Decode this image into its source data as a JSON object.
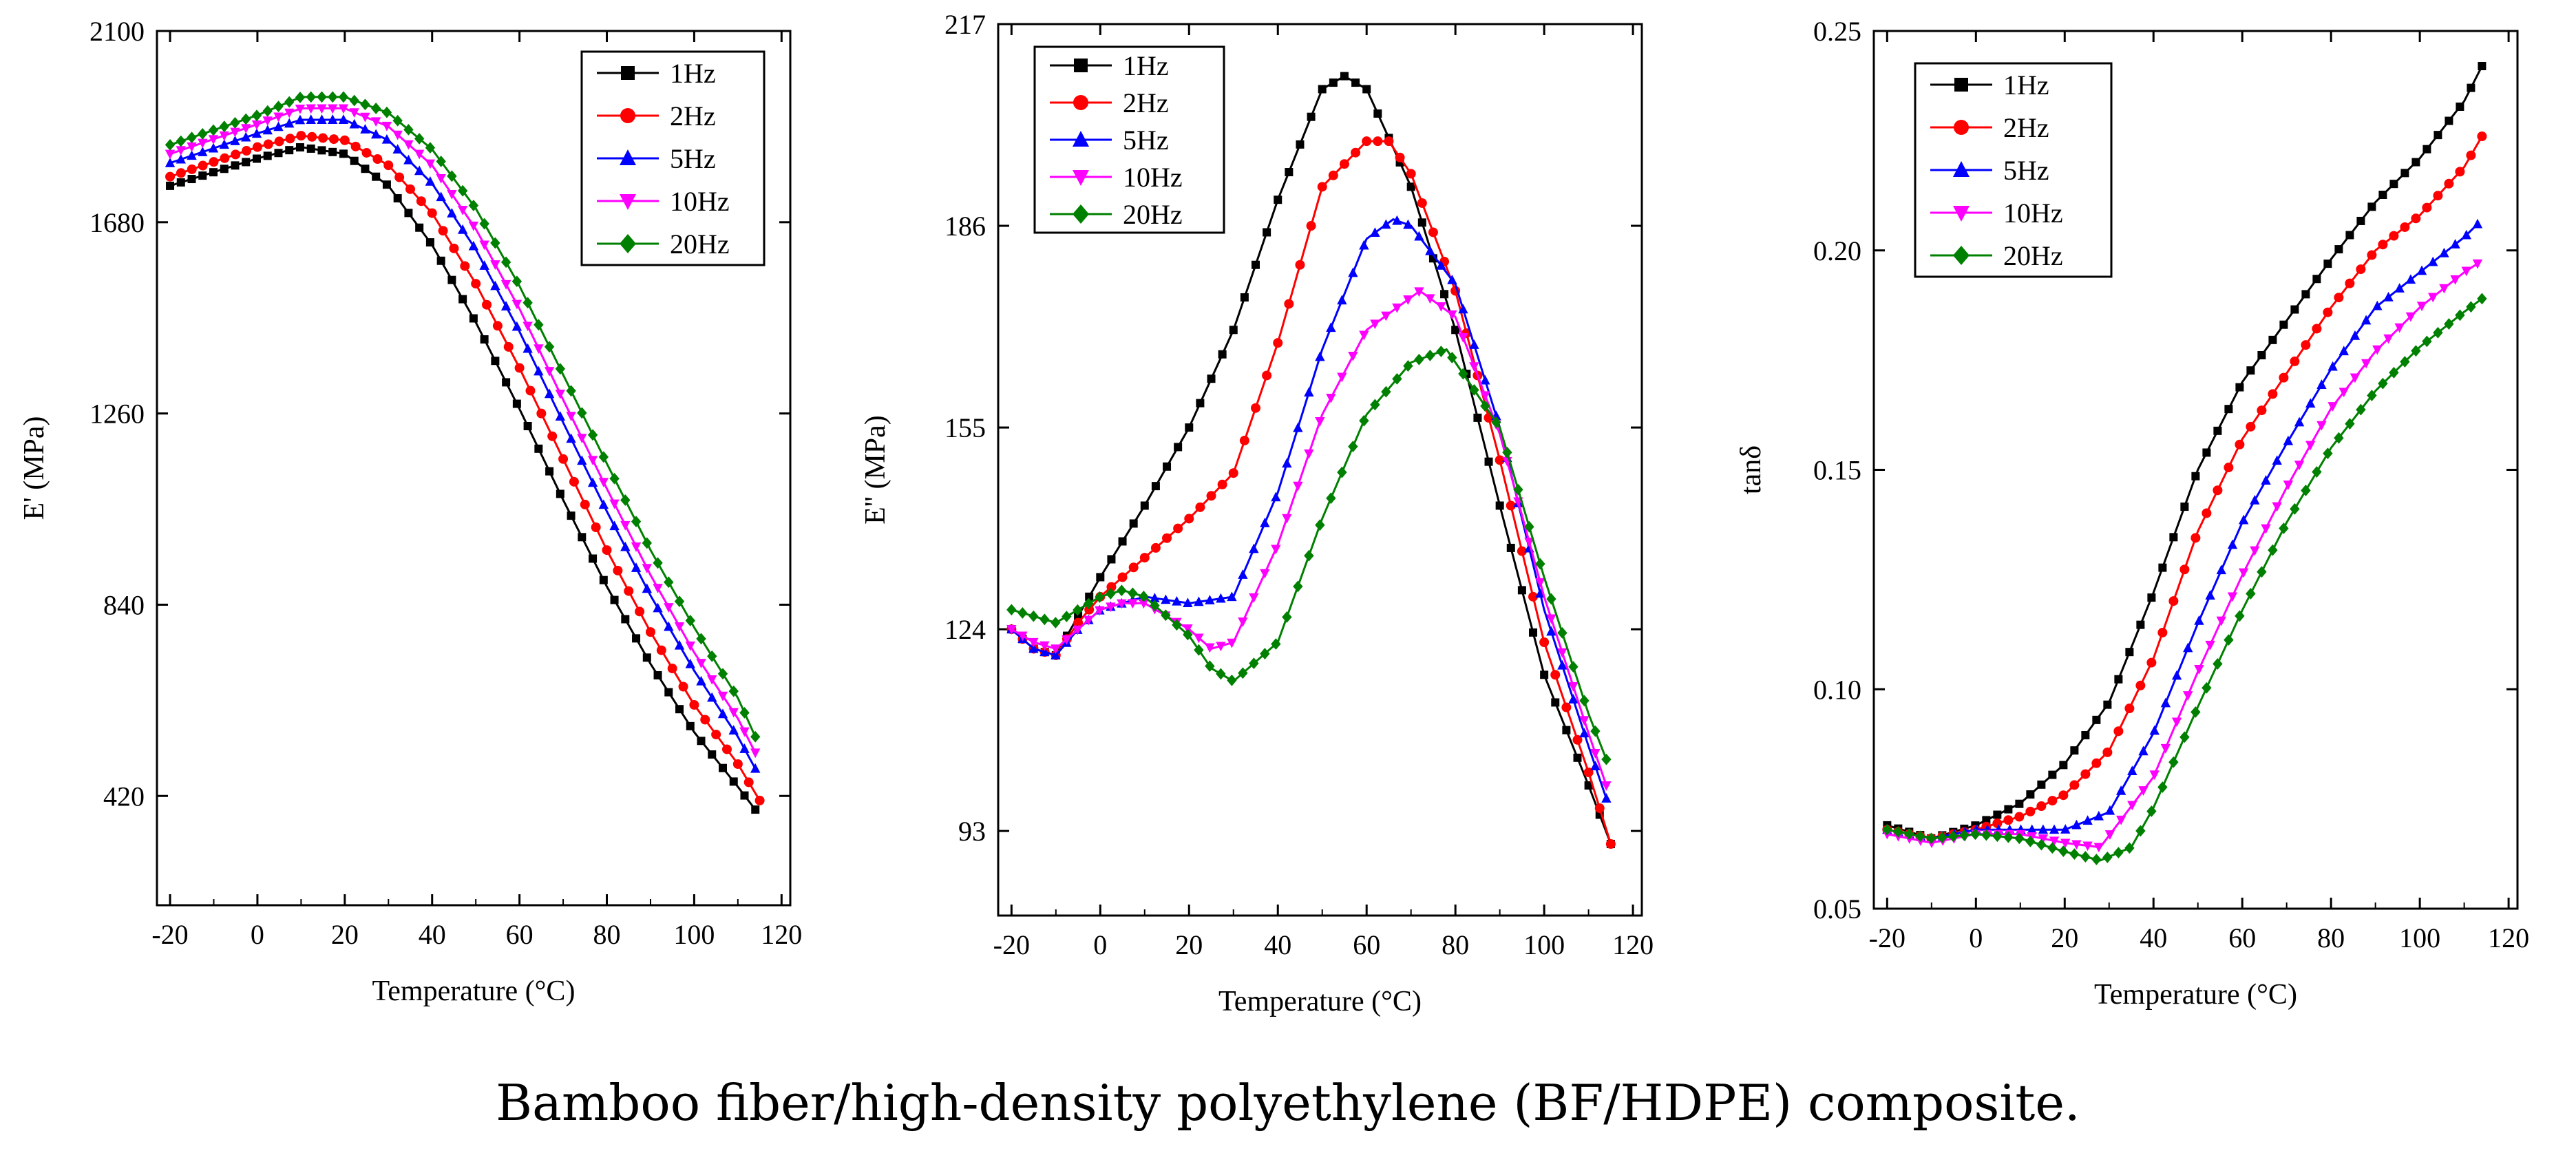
{
  "caption": "Bamboo fiber/high-density polyethylene (BF/HDPE) composite.",
  "colors": {
    "1Hz": "#000000",
    "2Hz": "#ff0000",
    "5Hz": "#0000ff",
    "10Hz": "#ff00ff",
    "20Hz": "#008000"
  },
  "chart_data": [
    {
      "type": "line",
      "title": "",
      "xlabel": "Temperature (°C)",
      "ylabel": "E' (MPa)",
      "xlim": [
        -23,
        122
      ],
      "ylim": [
        180,
        2100
      ],
      "xticks": [
        -20,
        0,
        20,
        40,
        60,
        80,
        100,
        120
      ],
      "xtick_labels": [
        "-20",
        "0",
        "20",
        "40",
        "60",
        "80",
        "100",
        "120"
      ],
      "yticks": [
        420,
        840,
        1260,
        1680,
        2100
      ],
      "ytick_labels": [
        "420",
        "840",
        "1260",
        "1680",
        "2100"
      ],
      "legend_position": "top-right",
      "series": [
        {
          "name": "1Hz",
          "marker": "square",
          "x": [
            -20,
            0,
            10,
            20,
            30,
            40,
            50,
            60,
            70,
            80,
            90,
            100,
            110,
            114
          ],
          "values": [
            1760,
            1820,
            1845,
            1830,
            1760,
            1630,
            1460,
            1270,
            1070,
            880,
            710,
            560,
            440,
            390
          ]
        },
        {
          "name": "2Hz",
          "marker": "circle",
          "x": [
            -20,
            0,
            10,
            20,
            30,
            40,
            50,
            60,
            70,
            80,
            90,
            100,
            110,
            115
          ],
          "values": [
            1780,
            1845,
            1870,
            1860,
            1805,
            1700,
            1545,
            1360,
            1160,
            960,
            780,
            620,
            490,
            410
          ]
        },
        {
          "name": "5Hz",
          "marker": "triangle-up",
          "x": [
            -20,
            0,
            10,
            20,
            30,
            40,
            50,
            60,
            70,
            80,
            90,
            100,
            110,
            114
          ],
          "values": [
            1810,
            1875,
            1905,
            1905,
            1860,
            1765,
            1620,
            1440,
            1240,
            1045,
            860,
            695,
            550,
            480
          ]
        },
        {
          "name": "10Hz",
          "marker": "triangle-down",
          "x": [
            -20,
            0,
            10,
            20,
            30,
            40,
            50,
            60,
            70,
            80,
            90,
            100,
            110,
            114
          ],
          "values": [
            1830,
            1895,
            1930,
            1930,
            1890,
            1805,
            1665,
            1490,
            1290,
            1095,
            905,
            735,
            590,
            515
          ]
        },
        {
          "name": "20Hz",
          "marker": "diamond",
          "x": [
            -20,
            0,
            10,
            20,
            30,
            40,
            50,
            60,
            70,
            80,
            90,
            100,
            110,
            114
          ],
          "values": [
            1850,
            1915,
            1955,
            1955,
            1920,
            1840,
            1710,
            1540,
            1345,
            1150,
            960,
            790,
            635,
            550
          ]
        }
      ]
    },
    {
      "type": "line",
      "title": "",
      "xlabel": "Temperature (°C)",
      "ylabel": "E'' (MPa)",
      "xlim": [
        -23,
        122
      ],
      "ylim": [
        80,
        217
      ],
      "xticks": [
        -20,
        0,
        20,
        40,
        60,
        80,
        100,
        120
      ],
      "xtick_labels": [
        "-20",
        "0",
        "20",
        "40",
        "60",
        "80",
        "100",
        "120"
      ],
      "yticks": [
        93,
        124,
        155,
        186,
        217
      ],
      "ytick_labels": [
        "93",
        "124",
        "155",
        "186",
        "217"
      ],
      "legend_position": "top-left",
      "series": [
        {
          "name": "1Hz",
          "marker": "square",
          "x": [
            -20,
            -15,
            -10,
            -5,
            0,
            10,
            20,
            30,
            40,
            50,
            55,
            60,
            70,
            80,
            90,
            100,
            110,
            115
          ],
          "values": [
            124,
            121,
            120,
            126,
            132,
            143,
            155,
            170,
            190,
            207,
            209,
            207,
            192,
            170,
            143,
            117,
            100,
            91
          ]
        },
        {
          "name": "2Hz",
          "marker": "circle",
          "x": [
            -20,
            -15,
            -10,
            -5,
            0,
            10,
            20,
            30,
            40,
            50,
            60,
            65,
            70,
            80,
            90,
            100,
            110,
            115
          ],
          "values": [
            124,
            121,
            120,
            125,
            129,
            135,
            141,
            148,
            168,
            192,
            199,
            199,
            194,
            176,
            150,
            122,
            102,
            91
          ]
        },
        {
          "name": "5Hz",
          "marker": "triangle-up",
          "x": [
            -20,
            -15,
            -10,
            -5,
            0,
            10,
            20,
            30,
            40,
            50,
            60,
            66,
            70,
            80,
            90,
            100,
            110,
            114
          ],
          "values": [
            124,
            121,
            120,
            124,
            127,
            129,
            128,
            129,
            145,
            167,
            184,
            187,
            186,
            177,
            155,
            127,
            106,
            98
          ]
        },
        {
          "name": "10Hz",
          "marker": "triangle-down",
          "x": [
            -20,
            -15,
            -10,
            -5,
            0,
            5,
            10,
            20,
            25,
            30,
            40,
            50,
            60,
            72,
            80,
            90,
            100,
            110,
            114
          ],
          "values": [
            124,
            122,
            121,
            124,
            127,
            128,
            128,
            124,
            121,
            122,
            137,
            157,
            170,
            176,
            172,
            154,
            129,
            108,
            100
          ]
        },
        {
          "name": "20Hz",
          "marker": "diamond",
          "x": [
            -20,
            -15,
            -10,
            -5,
            0,
            5,
            10,
            20,
            25,
            30,
            40,
            50,
            60,
            70,
            78,
            90,
            100,
            110,
            114
          ],
          "values": [
            127,
            126,
            125,
            127,
            129,
            130,
            129,
            123,
            118,
            116,
            122,
            141,
            157,
            165,
            167,
            155,
            132,
            111,
            104
          ]
        }
      ]
    },
    {
      "type": "line",
      "title": "",
      "xlabel": "Temperature (°C)",
      "ylabel": "tanδ",
      "xlim": [
        -23,
        122
      ],
      "ylim": [
        0.05,
        0.25
      ],
      "xticks": [
        -20,
        0,
        20,
        40,
        60,
        80,
        100,
        120
      ],
      "xtick_labels": [
        "-20",
        "0",
        "20",
        "40",
        "60",
        "80",
        "100",
        "120"
      ],
      "yticks": [
        0.05,
        0.1,
        0.15,
        0.2,
        0.25
      ],
      "ytick_labels": [
        "0.05",
        "0.10",
        "0.15",
        "0.20",
        "0.25"
      ],
      "legend_position": "top-left",
      "series": [
        {
          "name": "1Hz",
          "marker": "square",
          "x": [
            -20,
            -10,
            0,
            10,
            20,
            30,
            40,
            50,
            60,
            70,
            80,
            90,
            100,
            110,
            114
          ],
          "values": [
            0.069,
            0.066,
            0.069,
            0.074,
            0.083,
            0.097,
            0.122,
            0.15,
            0.17,
            0.184,
            0.198,
            0.211,
            0.221,
            0.234,
            0.242
          ]
        },
        {
          "name": "2Hz",
          "marker": "circle",
          "x": [
            -20,
            -10,
            0,
            10,
            20,
            30,
            40,
            50,
            60,
            70,
            80,
            90,
            100,
            110,
            114
          ],
          "values": [
            0.068,
            0.066,
            0.068,
            0.071,
            0.076,
            0.086,
            0.107,
            0.136,
            0.157,
            0.172,
            0.187,
            0.2,
            0.208,
            0.219,
            0.226
          ]
        },
        {
          "name": "5Hz",
          "marker": "triangle-up",
          "x": [
            -20,
            -10,
            0,
            10,
            20,
            30,
            40,
            50,
            60,
            70,
            80,
            90,
            100,
            110,
            113
          ],
          "values": [
            0.068,
            0.066,
            0.068,
            0.068,
            0.068,
            0.072,
            0.09,
            0.115,
            0.138,
            0.156,
            0.173,
            0.187,
            0.195,
            0.203,
            0.206
          ]
        },
        {
          "name": "10Hz",
          "marker": "triangle-down",
          "x": [
            -20,
            -10,
            0,
            10,
            20,
            28,
            40,
            50,
            60,
            70,
            80,
            90,
            100,
            110,
            113
          ],
          "values": [
            0.067,
            0.065,
            0.067,
            0.067,
            0.065,
            0.064,
            0.08,
            0.104,
            0.126,
            0.146,
            0.164,
            0.177,
            0.187,
            0.195,
            0.197
          ]
        },
        {
          "name": "20Hz",
          "marker": "diamond",
          "x": [
            -20,
            -10,
            0,
            10,
            20,
            28,
            35,
            40,
            50,
            60,
            70,
            80,
            90,
            100,
            110,
            114
          ],
          "values": [
            0.068,
            0.066,
            0.067,
            0.066,
            0.063,
            0.061,
            0.064,
            0.073,
            0.096,
            0.118,
            0.138,
            0.155,
            0.168,
            0.178,
            0.186,
            0.189
          ]
        }
      ]
    }
  ]
}
